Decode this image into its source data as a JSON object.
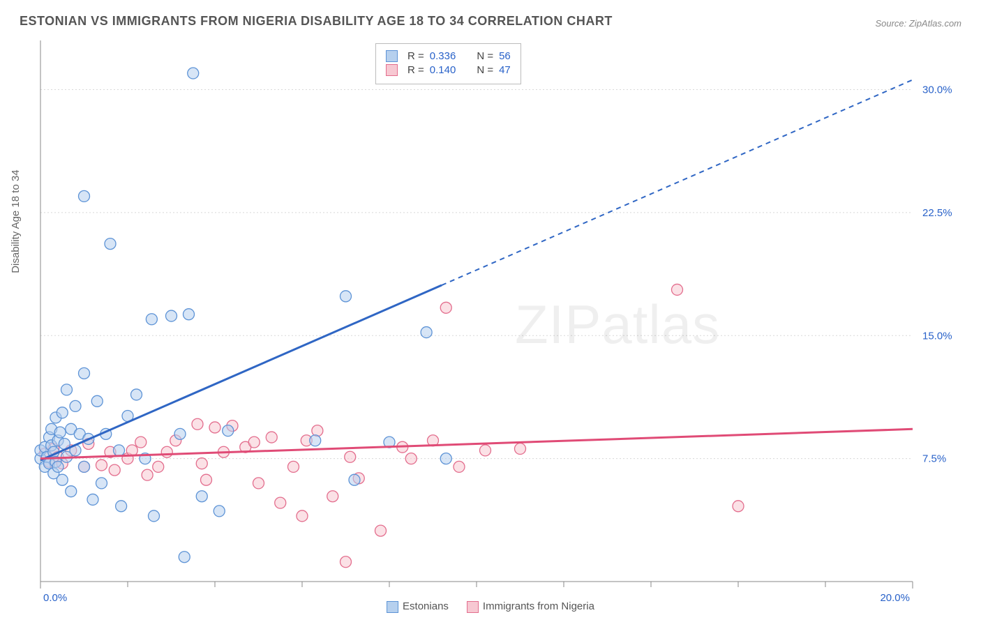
{
  "title": "ESTONIAN VS IMMIGRANTS FROM NIGERIA DISABILITY AGE 18 TO 34 CORRELATION CHART",
  "source": "Source: ZipAtlas.com",
  "ylabel": "Disability Age 18 to 34",
  "watermark": "ZIPatlas",
  "chart": {
    "type": "scatter",
    "xlim": [
      0,
      20
    ],
    "ylim": [
      0,
      33
    ],
    "x_ticks": [
      0,
      20
    ],
    "x_tick_labels": [
      "0.0%",
      "20.0%"
    ],
    "x_minor_ticks": [
      2,
      4,
      6,
      8,
      10,
      12,
      14,
      16,
      18
    ],
    "y_ticks": [
      7.5,
      15.0,
      22.5,
      30.0
    ],
    "y_tick_labels": [
      "7.5%",
      "15.0%",
      "22.5%",
      "30.0%"
    ],
    "background_color": "#ffffff",
    "grid_color": "#d8d8d8",
    "axis_color": "#888888",
    "label_color": "#2962c9",
    "marker_radius": 8,
    "series": [
      {
        "name": "Estonians",
        "fill": "#b6d0ee",
        "stroke": "#5d93d6",
        "fill_opacity": 0.55,
        "trend": {
          "color": "#2f66c4",
          "x1": 0.0,
          "y1": 7.4,
          "x2": 9.2,
          "y2": 16.2,
          "x3": 20.0,
          "y3": 30.6,
          "solid_to_x": 9.2
        },
        "R": "0.336",
        "N": "56",
        "points": [
          [
            0.0,
            7.5
          ],
          [
            0.0,
            8.0
          ],
          [
            0.1,
            8.2
          ],
          [
            0.1,
            7.0
          ],
          [
            0.15,
            7.6
          ],
          [
            0.2,
            8.8
          ],
          [
            0.2,
            7.2
          ],
          [
            0.25,
            8.3
          ],
          [
            0.25,
            9.3
          ],
          [
            0.3,
            7.9
          ],
          [
            0.3,
            6.6
          ],
          [
            0.35,
            10.0
          ],
          [
            0.35,
            7.3
          ],
          [
            0.4,
            8.6
          ],
          [
            0.4,
            7.0
          ],
          [
            0.45,
            9.1
          ],
          [
            0.5,
            10.3
          ],
          [
            0.5,
            6.2
          ],
          [
            0.55,
            8.4
          ],
          [
            0.6,
            11.7
          ],
          [
            0.6,
            7.6
          ],
          [
            0.7,
            9.3
          ],
          [
            0.7,
            5.5
          ],
          [
            0.8,
            8.0
          ],
          [
            0.8,
            10.7
          ],
          [
            0.9,
            9.0
          ],
          [
            1.0,
            12.7
          ],
          [
            1.0,
            23.5
          ],
          [
            1.0,
            7.0
          ],
          [
            1.1,
            8.7
          ],
          [
            1.2,
            5.0
          ],
          [
            1.3,
            11.0
          ],
          [
            1.4,
            6.0
          ],
          [
            1.5,
            9.0
          ],
          [
            1.6,
            20.6
          ],
          [
            1.8,
            8.0
          ],
          [
            1.85,
            4.6
          ],
          [
            2.0,
            10.1
          ],
          [
            2.2,
            11.4
          ],
          [
            2.4,
            7.5
          ],
          [
            2.55,
            16.0
          ],
          [
            2.6,
            4.0
          ],
          [
            3.0,
            16.2
          ],
          [
            3.2,
            9.0
          ],
          [
            3.3,
            1.5
          ],
          [
            3.4,
            16.3
          ],
          [
            3.5,
            31.0
          ],
          [
            3.7,
            5.2
          ],
          [
            4.1,
            4.3
          ],
          [
            4.3,
            9.2
          ],
          [
            6.3,
            8.6
          ],
          [
            7.0,
            17.4
          ],
          [
            7.2,
            6.2
          ],
          [
            8.0,
            8.5
          ],
          [
            8.85,
            15.2
          ],
          [
            9.3,
            7.5
          ]
        ]
      },
      {
        "name": "Immigrants from Nigeria",
        "fill": "#f7c8d2",
        "stroke": "#e36d8d",
        "fill_opacity": 0.55,
        "trend": {
          "color": "#e04b76",
          "x1": 0.0,
          "y1": 7.5,
          "x2": 20.0,
          "y2": 9.3,
          "solid_to_x": 20.0
        },
        "R": "0.140",
        "N": "47",
        "points": [
          [
            0.1,
            7.8
          ],
          [
            0.2,
            7.3
          ],
          [
            0.3,
            8.1
          ],
          [
            0.4,
            7.6
          ],
          [
            0.5,
            7.2
          ],
          [
            0.7,
            8.0
          ],
          [
            1.0,
            7.0
          ],
          [
            1.1,
            8.4
          ],
          [
            1.4,
            7.1
          ],
          [
            1.6,
            7.9
          ],
          [
            1.7,
            6.8
          ],
          [
            2.0,
            7.5
          ],
          [
            2.1,
            8.0
          ],
          [
            2.3,
            8.5
          ],
          [
            2.45,
            6.5
          ],
          [
            2.7,
            7.0
          ],
          [
            2.9,
            7.9
          ],
          [
            3.1,
            8.6
          ],
          [
            3.6,
            9.6
          ],
          [
            3.7,
            7.2
          ],
          [
            3.8,
            6.2
          ],
          [
            4.0,
            9.4
          ],
          [
            4.2,
            7.9
          ],
          [
            4.4,
            9.5
          ],
          [
            4.7,
            8.2
          ],
          [
            4.9,
            8.5
          ],
          [
            5.0,
            6.0
          ],
          [
            5.3,
            8.8
          ],
          [
            5.5,
            4.8
          ],
          [
            5.8,
            7.0
          ],
          [
            6.0,
            4.0
          ],
          [
            6.1,
            8.6
          ],
          [
            6.35,
            9.2
          ],
          [
            6.7,
            5.2
          ],
          [
            7.0,
            1.2
          ],
          [
            7.1,
            7.6
          ],
          [
            7.3,
            6.3
          ],
          [
            7.8,
            3.1
          ],
          [
            8.3,
            8.2
          ],
          [
            8.5,
            7.5
          ],
          [
            9.0,
            8.6
          ],
          [
            9.3,
            16.7
          ],
          [
            9.6,
            7.0
          ],
          [
            10.2,
            8.0
          ],
          [
            14.6,
            17.8
          ],
          [
            16.0,
            4.6
          ],
          [
            11.0,
            8.1
          ]
        ]
      }
    ],
    "stats_legend": {
      "rows": [
        {
          "swatch_fill": "#b6d0ee",
          "swatch_stroke": "#5d93d6",
          "R_label": "R =",
          "R": "0.336",
          "N_label": "N =",
          "N": "56"
        },
        {
          "swatch_fill": "#f7c8d2",
          "swatch_stroke": "#e36d8d",
          "R_label": "R =",
          "R": "0.140",
          "N_label": "N =",
          "N": "47"
        }
      ]
    },
    "bottom_legend": [
      {
        "label": "Estonians",
        "fill": "#b6d0ee",
        "stroke": "#5d93d6"
      },
      {
        "label": "Immigrants from Nigeria",
        "fill": "#f7c8d2",
        "stroke": "#e36d8d"
      }
    ]
  }
}
